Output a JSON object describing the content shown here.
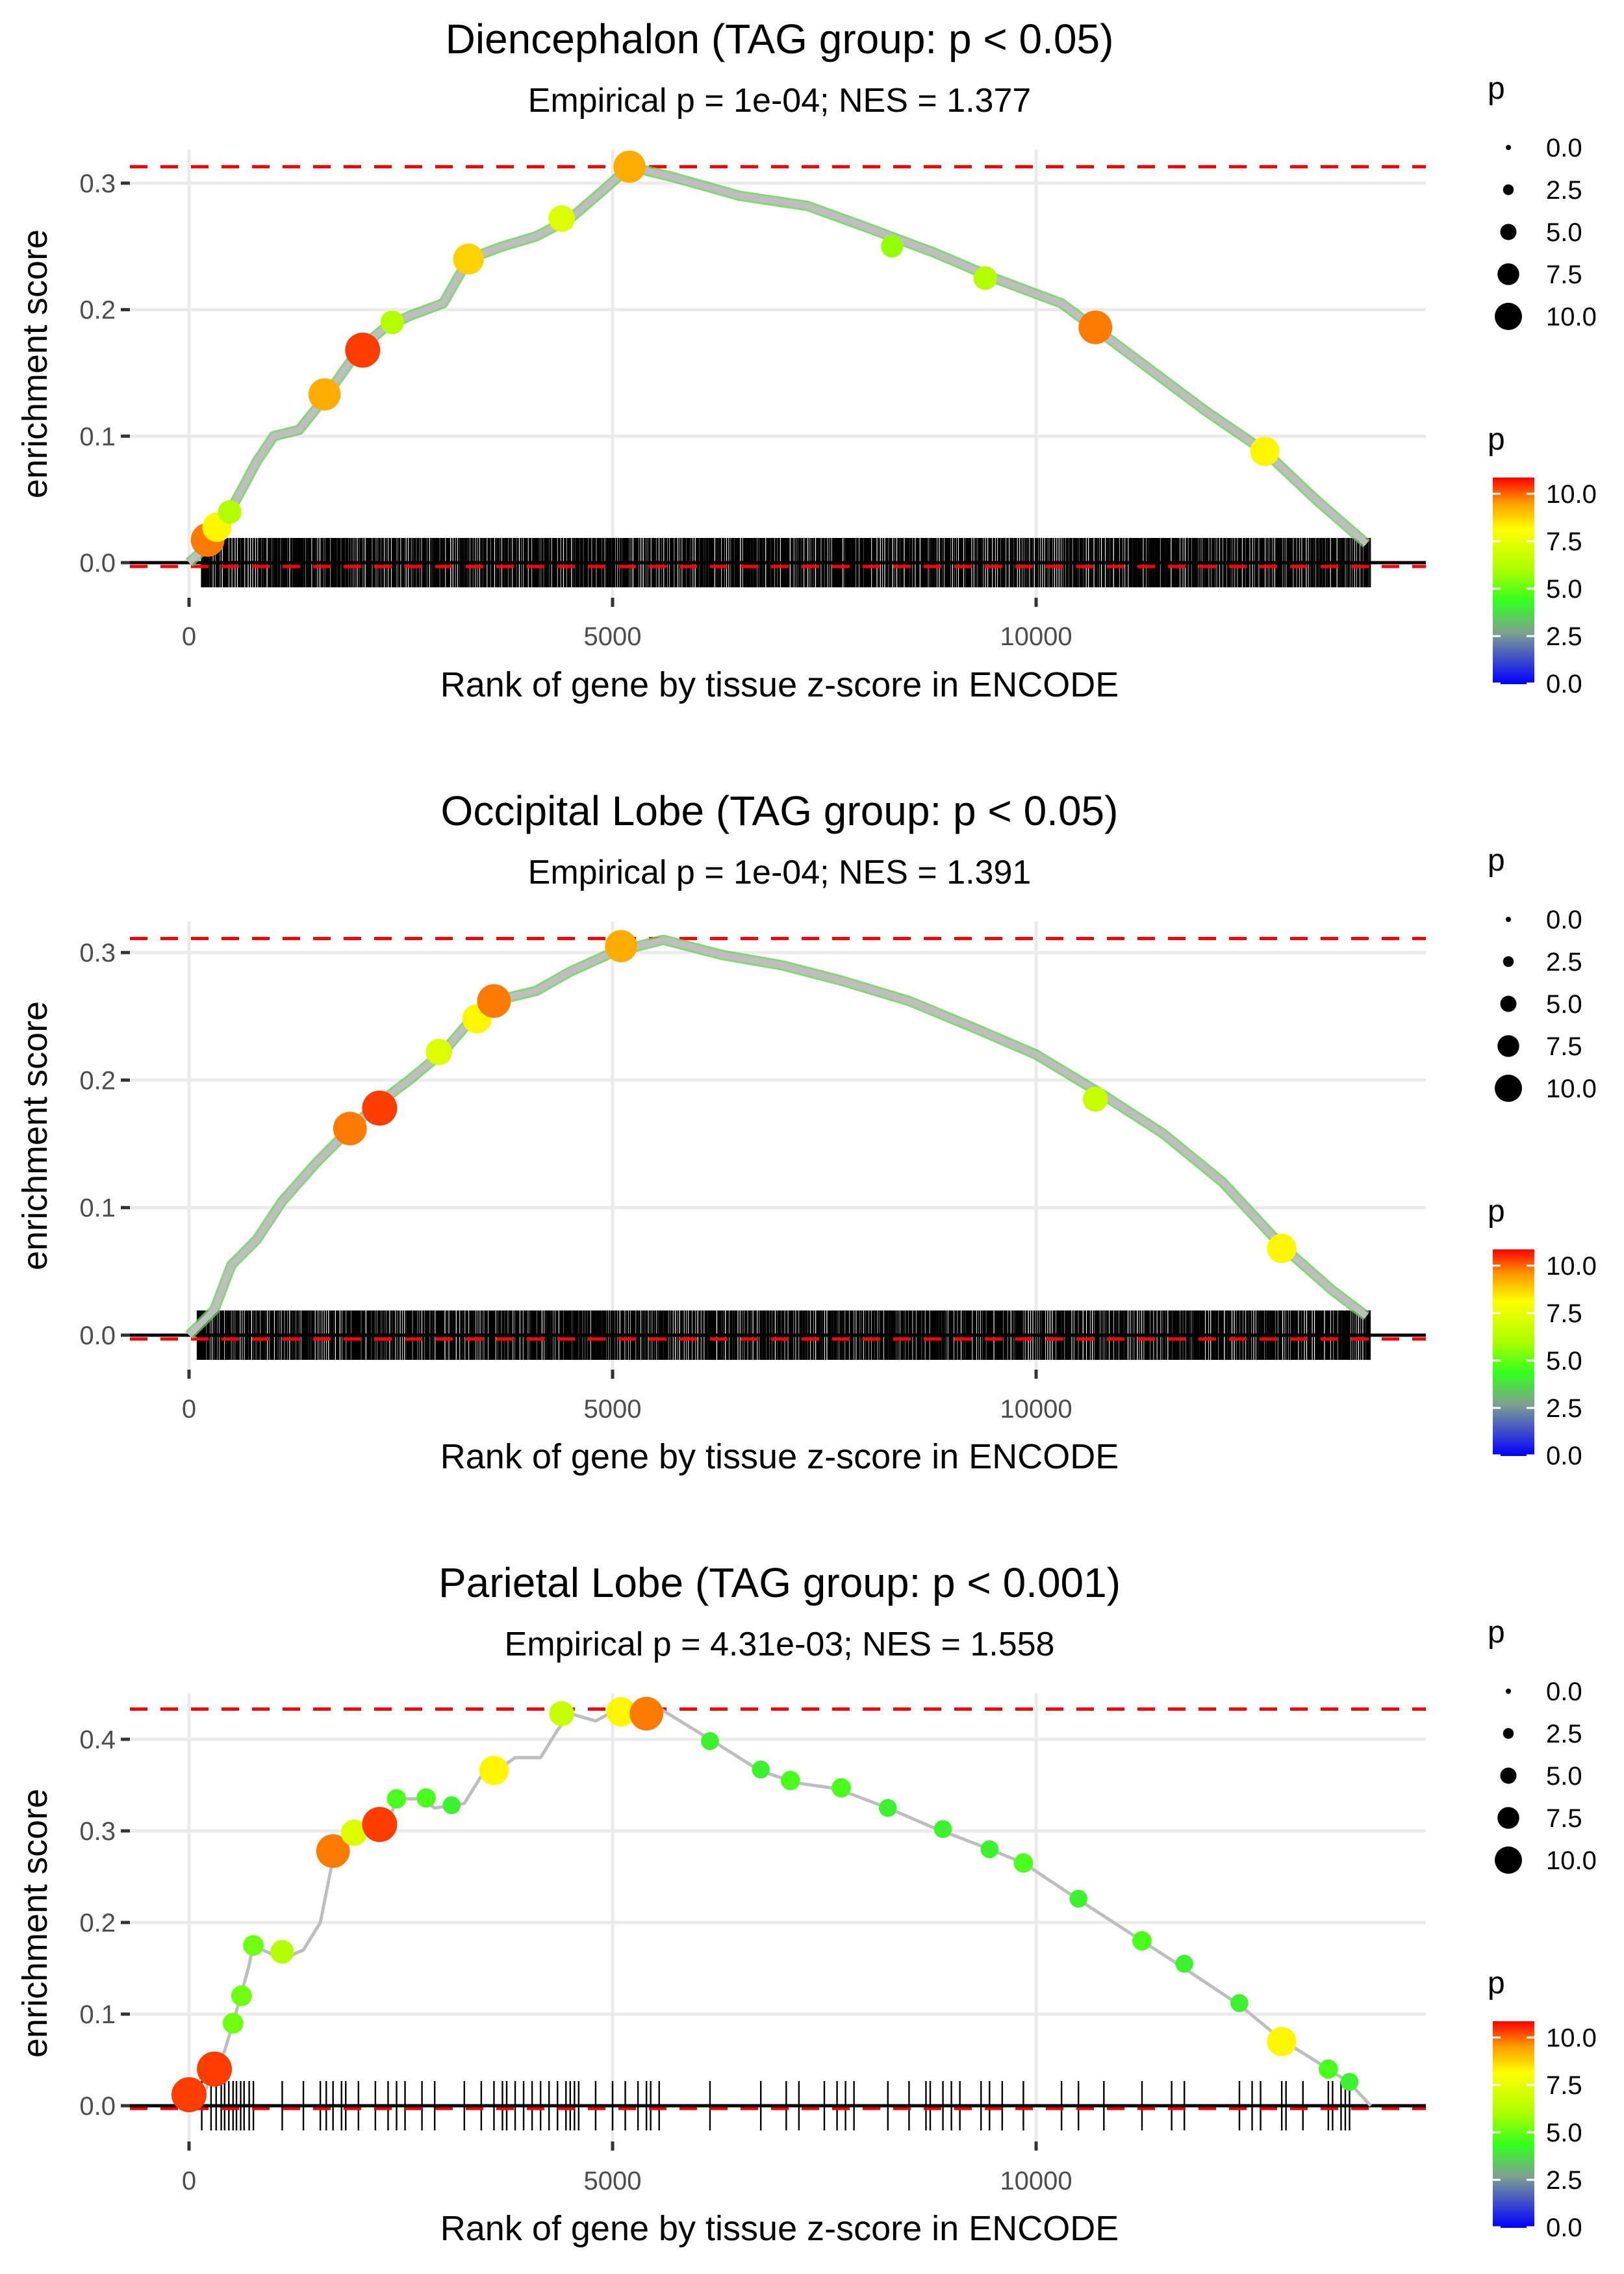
{
  "colors": {
    "background": "#ffffff",
    "gridline": "#ebebeb",
    "dashed_reference": "#ff0000",
    "baseline": "#000000",
    "running_line": "#bebebe",
    "barcode": "#000000",
    "scale": [
      "#0000ff",
      "#7f7fb0",
      "#7fb07f",
      "#33ff33",
      "#aaff00",
      "#ffff00",
      "#ffa500",
      "#ff5a00",
      "#ff0000"
    ]
  },
  "chart_data": [
    {
      "type": "line",
      "title": "Diencephalon (TAG group: p < 0.05)",
      "subtitle": "Empirical p = 1e-04; NES = 1.377",
      "xlabel": "Rank of gene by tissue z-score in ENCODE",
      "ylabel": "enrichment score",
      "xlim": [
        -1700,
        14700
      ],
      "ylim": [
        -0.02,
        0.32
      ],
      "x_ticks": [
        0,
        5000,
        10000
      ],
      "x_tick_labels": [
        "0",
        "5000",
        "10000"
      ],
      "y_ticks": [
        0.0,
        0.1,
        0.2,
        0.3
      ],
      "y_tick_labels": [
        "0.0",
        "0.1",
        "0.2",
        "0.3"
      ],
      "max_es": 0.313,
      "min_es": -0.003,
      "grid": true,
      "barcode": "dense",
      "barcode_range": [
        150,
        13950
      ],
      "curve": [
        [
          0,
          0
        ],
        [
          250,
          0.015
        ],
        [
          400,
          0.03
        ],
        [
          600,
          0.055
        ],
        [
          800,
          0.08
        ],
        [
          1000,
          0.1
        ],
        [
          1300,
          0.105
        ],
        [
          1600,
          0.13
        ],
        [
          2000,
          0.168
        ],
        [
          2300,
          0.185
        ],
        [
          2600,
          0.195
        ],
        [
          3000,
          0.205
        ],
        [
          3300,
          0.24
        ],
        [
          3700,
          0.25
        ],
        [
          4100,
          0.258
        ],
        [
          4500,
          0.272
        ],
        [
          4900,
          0.295
        ],
        [
          5200,
          0.313
        ],
        [
          5700,
          0.305
        ],
        [
          6500,
          0.29
        ],
        [
          7300,
          0.282
        ],
        [
          8000,
          0.265
        ],
        [
          8800,
          0.245
        ],
        [
          9500,
          0.225
        ],
        [
          10300,
          0.205
        ],
        [
          10700,
          0.185
        ],
        [
          11400,
          0.15
        ],
        [
          12000,
          0.12
        ],
        [
          12700,
          0.088
        ],
        [
          13300,
          0.05
        ],
        [
          13900,
          0.015
        ]
      ],
      "points": [
        {
          "rank": 220,
          "es": 0.018,
          "p": 9.5
        },
        {
          "rank": 330,
          "es": 0.028,
          "p": 8.0
        },
        {
          "rank": 480,
          "es": 0.04,
          "p": 6.0
        },
        {
          "rank": 1600,
          "es": 0.133,
          "p": 9.0
        },
        {
          "rank": 2050,
          "es": 0.168,
          "p": 10.0
        },
        {
          "rank": 2400,
          "es": 0.19,
          "p": 6.0
        },
        {
          "rank": 3300,
          "es": 0.24,
          "p": 8.5
        },
        {
          "rank": 4400,
          "es": 0.272,
          "p": 7.0
        },
        {
          "rank": 5200,
          "es": 0.313,
          "p": 9.0
        },
        {
          "rank": 8300,
          "es": 0.25,
          "p": 5.5
        },
        {
          "rank": 9400,
          "es": 0.225,
          "p": 6.0
        },
        {
          "rank": 10700,
          "es": 0.186,
          "p": 9.5
        },
        {
          "rank": 12700,
          "es": 0.088,
          "p": 8.0
        }
      ]
    },
    {
      "type": "line",
      "title": "Occipital Lobe (TAG group: p < 0.05)",
      "subtitle": "Empirical p = 1e-04; NES = 1.391",
      "xlabel": "Rank of gene by tissue z-score in ENCODE",
      "ylabel": "enrichment score",
      "xlim": [
        -1700,
        14700
      ],
      "ylim": [
        -0.02,
        0.32
      ],
      "x_ticks": [
        0,
        5000,
        10000
      ],
      "x_tick_labels": [
        "0",
        "5000",
        "10000"
      ],
      "y_ticks": [
        0.0,
        0.1,
        0.2,
        0.3
      ],
      "y_tick_labels": [
        "0.0",
        "0.1",
        "0.2",
        "0.3"
      ],
      "max_es": 0.311,
      "min_es": -0.003,
      "grid": true,
      "barcode": "dense",
      "barcode_range": [
        100,
        13950
      ],
      "curve": [
        [
          0,
          0
        ],
        [
          300,
          0.02
        ],
        [
          500,
          0.055
        ],
        [
          800,
          0.075
        ],
        [
          1100,
          0.105
        ],
        [
          1500,
          0.135
        ],
        [
          1800,
          0.155
        ],
        [
          2200,
          0.18
        ],
        [
          2600,
          0.2
        ],
        [
          3000,
          0.222
        ],
        [
          3300,
          0.245
        ],
        [
          3600,
          0.262
        ],
        [
          4100,
          0.27
        ],
        [
          4500,
          0.285
        ],
        [
          5000,
          0.3
        ],
        [
          5600,
          0.31
        ],
        [
          6300,
          0.298
        ],
        [
          7000,
          0.29
        ],
        [
          7700,
          0.278
        ],
        [
          8500,
          0.262
        ],
        [
          9300,
          0.24
        ],
        [
          10000,
          0.22
        ],
        [
          10800,
          0.188
        ],
        [
          11500,
          0.158
        ],
        [
          12200,
          0.12
        ],
        [
          12900,
          0.07
        ],
        [
          13500,
          0.035
        ],
        [
          13900,
          0.015
        ]
      ],
      "points": [
        {
          "rank": 1900,
          "es": 0.162,
          "p": 9.5
        },
        {
          "rank": 2250,
          "es": 0.178,
          "p": 10.0
        },
        {
          "rank": 2950,
          "es": 0.222,
          "p": 7.0
        },
        {
          "rank": 3400,
          "es": 0.248,
          "p": 8.0
        },
        {
          "rank": 3600,
          "es": 0.262,
          "p": 9.5
        },
        {
          "rank": 5100,
          "es": 0.305,
          "p": 9.0
        },
        {
          "rank": 10700,
          "es": 0.185,
          "p": 6.5
        },
        {
          "rank": 12900,
          "es": 0.068,
          "p": 8.0
        }
      ]
    },
    {
      "type": "line",
      "title": "Parietal Lobe (TAG group: p < 0.001)",
      "subtitle": "Empirical p = 4.31e-03; NES = 1.558",
      "xlabel": "Rank of gene by tissue z-score in ENCODE",
      "ylabel": "enrichment score",
      "xlim": [
        -1700,
        14700
      ],
      "ylim": [
        -0.02,
        0.44
      ],
      "x_ticks": [
        0,
        5000,
        10000
      ],
      "x_tick_labels": [
        "0",
        "5000",
        "10000"
      ],
      "y_ticks": [
        0.0,
        0.1,
        0.2,
        0.3,
        0.4
      ],
      "y_tick_labels": [
        "0.0",
        "0.1",
        "0.2",
        "0.3",
        "0.4"
      ],
      "max_es": 0.433,
      "min_es": -0.003,
      "grid": true,
      "barcode": "sparse",
      "barcode_ranks": [
        150,
        260,
        320,
        380,
        420,
        470,
        520,
        560,
        610,
        650,
        710,
        760,
        1100,
        1350,
        1550,
        1620,
        1700,
        1800,
        1850,
        2000,
        2200,
        2350,
        2450,
        2550,
        2750,
        2900,
        3250,
        3450,
        3600,
        3700,
        3750,
        3850,
        3950,
        4050,
        4150,
        4250,
        4350,
        4450,
        4500,
        4550,
        4600,
        4800,
        5000,
        5150,
        5300,
        5400,
        5450,
        5550,
        6150,
        6750,
        7050,
        7200,
        7500,
        7650,
        7750,
        7850,
        8250,
        8500,
        8700,
        8750,
        8900,
        9000,
        9100,
        9350,
        9450,
        9600,
        9850,
        10300,
        10500,
        10800,
        11250,
        11600,
        11750,
        12400,
        12550,
        12650,
        12900,
        12950,
        13150,
        13450,
        13500,
        13600,
        13650,
        13700
      ],
      "curve": [
        [
          0,
          0
        ],
        [
          150,
          0.01
        ],
        [
          260,
          0.03
        ],
        [
          320,
          0.04
        ],
        [
          420,
          0.06
        ],
        [
          520,
          0.09
        ],
        [
          610,
          0.12
        ],
        [
          700,
          0.15
        ],
        [
          760,
          0.175
        ],
        [
          1100,
          0.16
        ],
        [
          1350,
          0.17
        ],
        [
          1550,
          0.2
        ],
        [
          1700,
          0.27
        ],
        [
          1850,
          0.285
        ],
        [
          2000,
          0.295
        ],
        [
          2200,
          0.3
        ],
        [
          2350,
          0.31
        ],
        [
          2450,
          0.335
        ],
        [
          2750,
          0.335
        ],
        [
          2900,
          0.325
        ],
        [
          3250,
          0.33
        ],
        [
          3450,
          0.36
        ],
        [
          3700,
          0.37
        ],
        [
          3850,
          0.38
        ],
        [
          4150,
          0.38
        ],
        [
          4350,
          0.41
        ],
        [
          4500,
          0.428
        ],
        [
          4800,
          0.42
        ],
        [
          5000,
          0.43
        ],
        [
          5300,
          0.428
        ],
        [
          5550,
          0.434
        ],
        [
          6150,
          0.4
        ],
        [
          6750,
          0.365
        ],
        [
          7200,
          0.352
        ],
        [
          7650,
          0.346
        ],
        [
          8250,
          0.325
        ],
        [
          8750,
          0.305
        ],
        [
          9450,
          0.28
        ],
        [
          9850,
          0.265
        ],
        [
          10500,
          0.225
        ],
        [
          11250,
          0.18
        ],
        [
          11750,
          0.15
        ],
        [
          12400,
          0.11
        ],
        [
          12900,
          0.072
        ],
        [
          13450,
          0.04
        ],
        [
          13700,
          0.025
        ],
        [
          13950,
          0.0
        ]
      ],
      "points": [
        {
          "rank": 0,
          "es": 0.012,
          "p": 10.0
        },
        {
          "rank": 300,
          "es": 0.04,
          "p": 10.0
        },
        {
          "rank": 520,
          "es": 0.09,
          "p": 5.0
        },
        {
          "rank": 620,
          "es": 0.12,
          "p": 5.0
        },
        {
          "rank": 760,
          "es": 0.175,
          "p": 5.0
        },
        {
          "rank": 1100,
          "es": 0.168,
          "p": 6.0
        },
        {
          "rank": 1700,
          "es": 0.278,
          "p": 9.5
        },
        {
          "rank": 1950,
          "es": 0.298,
          "p": 7.0
        },
        {
          "rank": 2250,
          "es": 0.307,
          "p": 10.0
        },
        {
          "rank": 2450,
          "es": 0.335,
          "p": 4.5
        },
        {
          "rank": 2800,
          "es": 0.336,
          "p": 4.5
        },
        {
          "rank": 3100,
          "es": 0.328,
          "p": 4.0
        },
        {
          "rank": 3600,
          "es": 0.366,
          "p": 8.0
        },
        {
          "rank": 4400,
          "es": 0.428,
          "p": 6.5
        },
        {
          "rank": 5100,
          "es": 0.43,
          "p": 8.0
        },
        {
          "rank": 5400,
          "es": 0.428,
          "p": 9.5
        },
        {
          "rank": 6150,
          "es": 0.398,
          "p": 4.0
        },
        {
          "rank": 6750,
          "es": 0.367,
          "p": 4.0
        },
        {
          "rank": 7100,
          "es": 0.355,
          "p": 4.5
        },
        {
          "rank": 7700,
          "es": 0.347,
          "p": 4.5
        },
        {
          "rank": 8250,
          "es": 0.325,
          "p": 4.0
        },
        {
          "rank": 8900,
          "es": 0.302,
          "p": 4.0
        },
        {
          "rank": 9450,
          "es": 0.28,
          "p": 4.0
        },
        {
          "rank": 9850,
          "es": 0.265,
          "p": 4.5
        },
        {
          "rank": 10500,
          "es": 0.226,
          "p": 4.0
        },
        {
          "rank": 11250,
          "es": 0.18,
          "p": 4.5
        },
        {
          "rank": 11750,
          "es": 0.155,
          "p": 4.0
        },
        {
          "rank": 12400,
          "es": 0.112,
          "p": 4.0
        },
        {
          "rank": 12900,
          "es": 0.07,
          "p": 8.0
        },
        {
          "rank": 13450,
          "es": 0.04,
          "p": 4.5
        },
        {
          "rank": 13700,
          "es": 0.026,
          "p": 4.0
        }
      ]
    }
  ],
  "legends": [
    {
      "size_title": "p",
      "size_entries": [
        "0.0",
        "2.5",
        "5.0",
        "7.5",
        "10.0"
      ],
      "color_title": "p",
      "color_labels": [
        "10.0",
        "7.5",
        "5.0",
        "2.5",
        "0.0"
      ]
    },
    {
      "size_title": "p",
      "size_entries": [
        "0.0",
        "2.5",
        "5.0",
        "7.5",
        "10.0"
      ],
      "color_title": "p",
      "color_labels": [
        "10.0",
        "7.5",
        "5.0",
        "2.5",
        "0.0"
      ]
    },
    {
      "size_title": "p",
      "size_entries": [
        "0.0",
        "2.5",
        "5.0",
        "7.5",
        "10.0"
      ],
      "color_title": "p",
      "color_labels": [
        "10.0",
        "7.5",
        "5.0",
        "2.5",
        "0.0"
      ]
    }
  ]
}
